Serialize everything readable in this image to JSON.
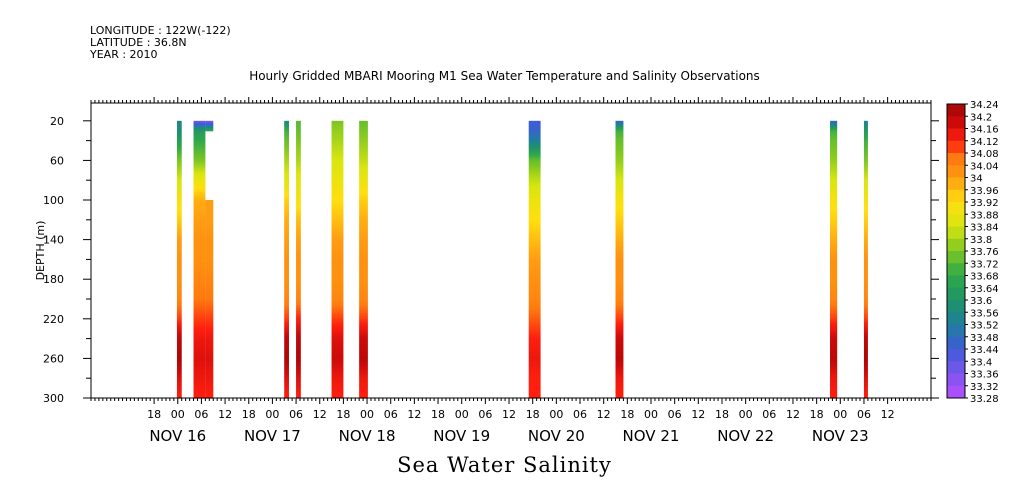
{
  "header": {
    "longitude": "LONGITUDE : 122W(-122)",
    "latitude": "LATITUDE : 36.8N",
    "year": "YEAR : 2010"
  },
  "title": "Hourly Gridded MBARI Mooring M1 Sea Water Temperature and Salinity Observations",
  "footer": "Sea Water Salinity",
  "chart_data": {
    "type": "heatmap",
    "title": "Hourly Gridded MBARI Mooring M1 Sea Water Temperature and Salinity Observations",
    "xlabel": "",
    "ylabel": "DEPTH (m)",
    "variable": "Sea Water Salinity",
    "x_units": "hours since NOV 16 2010 00:00",
    "xlim": [
      -22,
      191
    ],
    "ylim": [
      300,
      2
    ],
    "y_ticks": [
      20,
      60,
      100,
      140,
      180,
      220,
      260,
      300
    ],
    "x_tick_labels": [
      "18",
      "00",
      "06",
      "12",
      "18",
      "00",
      "06",
      "12",
      "18",
      "00",
      "06",
      "12",
      "18",
      "00",
      "06",
      "12",
      "18",
      "00",
      "06",
      "12",
      "18",
      "00",
      "06",
      "12",
      "18",
      "00",
      "06",
      "12",
      "18",
      "00",
      "06",
      "12"
    ],
    "x_tick_hours": [
      -6,
      0,
      6,
      12,
      18,
      24,
      30,
      36,
      42,
      48,
      54,
      60,
      66,
      72,
      78,
      84,
      90,
      96,
      102,
      108,
      114,
      120,
      126,
      132,
      138,
      144,
      150,
      156,
      162,
      168,
      174,
      180
    ],
    "date_labels": [
      {
        "label": "NOV 16",
        "hour": 0
      },
      {
        "label": "NOV 17",
        "hour": 24
      },
      {
        "label": "NOV 18",
        "hour": 48
      },
      {
        "label": "NOV 19",
        "hour": 72
      },
      {
        "label": "NOV 20",
        "hour": 96
      },
      {
        "label": "NOV 21",
        "hour": 120
      },
      {
        "label": "NOV 22",
        "hour": 144
      },
      {
        "label": "NOV 23",
        "hour": 168
      }
    ],
    "colorbar": {
      "min": 33.28,
      "max": 34.24,
      "step": 0.04,
      "labels": [
        "34.24",
        "34.2",
        "34.16",
        "34.12",
        "34.08",
        "34.04",
        "34",
        "33.96",
        "33.92",
        "33.88",
        "33.84",
        "33.8",
        "33.76",
        "33.72",
        "33.68",
        "33.64",
        "33.6",
        "33.56",
        "33.52",
        "33.48",
        "33.44",
        "33.4",
        "33.36",
        "33.32",
        "33.28"
      ]
    },
    "profile_depths": [
      20,
      30,
      40,
      60,
      80,
      100,
      120,
      140,
      160,
      180,
      200,
      220,
      240,
      260,
      280,
      300
    ],
    "series": [
      {
        "start": -0.2,
        "end": 1,
        "values": [
          33.54,
          33.58,
          33.64,
          33.76,
          33.84,
          33.9,
          33.94,
          34.0,
          34.02,
          34.02,
          34.04,
          34.1,
          34.2,
          34.22,
          34.16,
          34.12
        ]
      },
      {
        "start": 4,
        "end": 7,
        "values": [
          33.36,
          33.62,
          33.68,
          33.76,
          33.88,
          33.98,
          34.0,
          34.02,
          34.02,
          34.04,
          34.06,
          34.1,
          34.14,
          34.16,
          34.14,
          34.12
        ]
      },
      {
        "start": 7,
        "end": 9,
        "values": [
          33.34,
          33.66,
          null,
          null,
          null,
          34.0,
          34.0,
          34.02,
          34.02,
          34.04,
          34.06,
          34.1,
          34.14,
          34.16,
          34.14,
          34.12
        ]
      },
      {
        "start": 27,
        "end": 28.2,
        "values": [
          33.54,
          33.7,
          33.74,
          33.8,
          33.86,
          33.94,
          33.98,
          34.0,
          34.02,
          34.02,
          34.04,
          34.1,
          34.2,
          34.22,
          34.16,
          34.12
        ]
      },
      {
        "start": 30,
        "end": 31.2,
        "values": [
          33.72,
          33.74,
          33.76,
          33.8,
          33.86,
          33.9,
          33.96,
          34.0,
          34.02,
          34.02,
          34.04,
          34.12,
          34.2,
          34.22,
          34.16,
          34.12
        ]
      },
      {
        "start": 39,
        "end": 42,
        "values": [
          33.76,
          33.78,
          33.8,
          33.84,
          33.88,
          33.92,
          33.96,
          34.0,
          34.02,
          34.02,
          34.04,
          34.1,
          34.16,
          34.18,
          34.14,
          34.12
        ]
      },
      {
        "start": 46,
        "end": 48.2,
        "values": [
          33.74,
          33.76,
          33.78,
          33.82,
          33.88,
          33.94,
          33.98,
          34.0,
          34.02,
          34.02,
          34.04,
          34.1,
          34.18,
          34.2,
          34.14,
          34.12
        ]
      },
      {
        "start": 89,
        "end": 92,
        "values": [
          33.44,
          33.46,
          33.52,
          33.74,
          33.82,
          33.88,
          33.92,
          33.96,
          34.0,
          34.02,
          34.04,
          34.08,
          34.12,
          34.14,
          34.12,
          34.12
        ]
      },
      {
        "start": 111,
        "end": 113,
        "values": [
          33.44,
          33.7,
          33.74,
          33.78,
          33.84,
          33.9,
          33.94,
          33.98,
          34.02,
          34.02,
          34.04,
          34.1,
          34.18,
          34.2,
          34.14,
          34.12
        ]
      },
      {
        "start": 165.4,
        "end": 167.2,
        "values": [
          33.44,
          33.7,
          33.74,
          33.78,
          33.84,
          33.9,
          33.94,
          33.98,
          34.02,
          34.02,
          34.04,
          34.1,
          34.18,
          34.2,
          34.14,
          34.12
        ]
      },
      {
        "start": 174,
        "end": 175,
        "values": [
          33.52,
          33.62,
          33.7,
          33.76,
          33.84,
          33.9,
          33.94,
          33.98,
          34.02,
          34.02,
          34.04,
          34.1,
          34.2,
          34.22,
          34.16,
          34.12
        ]
      }
    ]
  }
}
